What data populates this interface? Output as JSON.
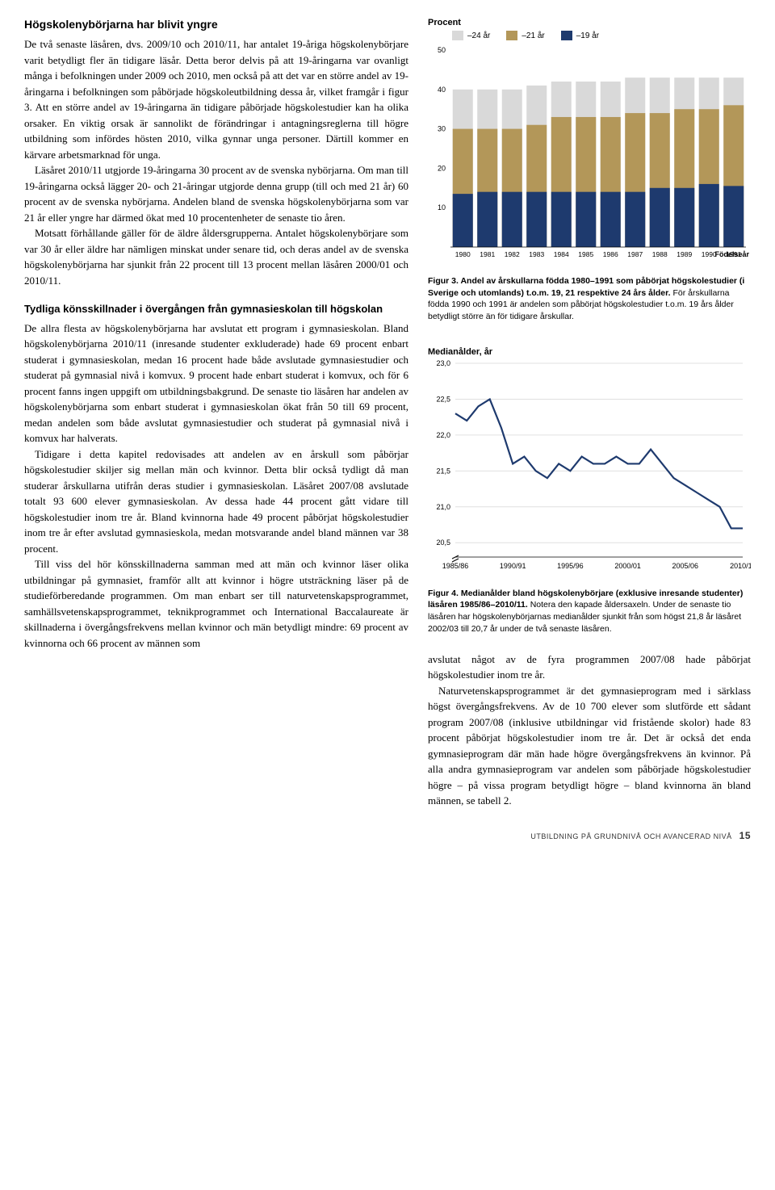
{
  "leftCol": {
    "heading1": "Högskolenybörjarna har blivit yngre",
    "para1": "De två senaste läsåren, dvs. 2009/10 och 2010/11, har antalet 19-åriga högskolenybörjare varit betydligt fler än tidigare läsår. Detta beror delvis på att 19-åringarna var ovanligt många i befolkningen under 2009 och 2010, men också på att det var en större andel av 19-åringarna i befolkningen som påbörjade högskoleutbildning dessa år, vilket framgår i figur 3. Att en större andel av 19-åringarna än tidigare påbörjade högskolestudier kan ha olika orsaker. En viktig orsak är sannolikt de förändringar i antagningsreglerna till högre utbildning som infördes hösten 2010, vilka gynnar unga personer. Därtill kommer en kärvare arbetsmarknad för unga.",
    "para2": "Läsåret 2010/11 utgjorde 19-åringarna 30 procent av de svenska nybörjarna. Om man till 19-åringarna också lägger 20- och 21-åringar utgjorde denna grupp (till och med 21 år) 60 procent av de svenska nybörjarna. Andelen bland de svenska högskolenybörjarna som var 21 år eller yngre har därmed ökat med 10 procentenheter de senaste tio åren.",
    "para3": "Motsatt förhållande gäller för de äldre åldersgrupperna. Antalet högskolenybörjare som var 30 år eller äldre har nämligen minskat under senare tid, och deras andel av de svenska högskolenybörjarna har sjunkit från 22 procent till 13 procent mellan läsåren 2000/01 och 2010/11.",
    "heading2": "Tydliga könsskillnader i övergången från gymnasieskolan till högskolan",
    "para4": "De allra flesta av högskolenybörjarna har avslutat ett program i gymnasieskolan. Bland högskolenybörjarna 2010/11 (inresande studenter exkluderade) hade 69 procent enbart studerat i gymnasieskolan, medan 16 procent hade både avslutade gymnasiestudier och studerat på gymnasial nivå i komvux. 9 procent hade enbart studerat i komvux, och för 6 procent fanns ingen uppgift om utbildningsbakgrund. De senaste tio läsåren har andelen av högskolenybörjarna som enbart studerat i gymnasieskolan ökat från 50 till 69 procent, medan andelen som både avslutat gymnasiestudier och studerat på gymnasial nivå i komvux har halverats.",
    "para5": "Tidigare i detta kapitel redovisades att andelen av en årskull som påbörjar högskolestudier skiljer sig mellan män och kvinnor. Detta blir också tydligt då man studerar årskullarna utifrån deras studier i gymnasieskolan. Läsåret 2007/08 avslutade totalt 93 600 elever gymnasieskolan. Av dessa hade 44 procent gått vidare till högskolestudier inom tre år. Bland kvinnorna hade 49 procent påbörjat högskolestudier inom tre år efter avslutad gymnasieskola, medan motsvarande andel bland männen var 38 procent.",
    "para6": "Till viss del hör könsskillnaderna samman med att män och kvinnor läser olika utbildningar på gymnasiet, framför allt att kvinnor i högre utsträckning läser på de studieförberedande programmen. Om man enbart ser till naturvetenskapsprogrammet, samhällsvetenskapsprogrammet, teknikprogrammet och International Baccalaureate är skillnaderna i övergångsfrekvens mellan kvinnor och män betydligt mindre: 69 procent av kvinnorna och 66 procent av männen som"
  },
  "rightCol": {
    "para7": "avslutat något av de fyra programmen 2007/08 hade påbörjat högskolestudier inom tre år.",
    "para8": "Naturvetenskapsprogrammet är det gymnasieprogram med i särklass högst övergångsfrekvens. Av de 10 700 elever som slutförde ett sådant program 2007/08 (inklusive utbildningar vid fristående skolor) hade 83 procent påbörjat högskolestudier inom tre år. Det är också det enda gymnasieprogram där män hade högre övergångsfrekvens än kvinnor. På alla andra gymnasieprogram var andelen som påbörjade högskolestudier högre – på vissa program betydligt högre – bland kvinnorna än bland männen, se tabell 2."
  },
  "barChart": {
    "title": "Procent",
    "legend": [
      {
        "label": "–24 år",
        "color": "#d9d9d9"
      },
      {
        "label": "–21 år",
        "color": "#b39759"
      },
      {
        "label": "–19 år",
        "color": "#1e3a6e"
      }
    ],
    "yTicks": [
      10,
      20,
      30,
      40,
      50
    ],
    "yMax": 50,
    "years": [
      "1980",
      "1981",
      "1982",
      "1983",
      "1984",
      "1985",
      "1986",
      "1987",
      "1988",
      "1989",
      "1990",
      "1991"
    ],
    "series24": [
      40,
      40,
      40,
      41,
      42,
      42,
      42,
      43,
      43,
      43,
      43,
      43
    ],
    "series21": [
      30,
      30,
      30,
      31,
      33,
      33,
      33,
      34,
      34,
      35,
      35,
      36
    ],
    "series19": [
      13.5,
      14,
      14,
      14,
      14,
      14,
      14,
      14,
      15,
      15,
      16,
      15.5
    ],
    "xLabelRight": "Födelseår",
    "colors": {
      "bg": "#ffffff",
      "grid": "#ffffff"
    },
    "caption_strong": "Figur 3. Andel av årskullarna födda 1980–1991 som påbörjat högskolestudier (i Sverige och utomlands) t.o.m. 19, 21 respektive 24 års ålder.",
    "caption_rest": " För årskullarna födda 1990 och 1991 är andelen som påbörjat högskolestudier t.o.m. 19 års ålder betydligt större än för tidigare årskullar."
  },
  "lineChart": {
    "title": "Medianålder, år",
    "yTicks": [
      20.5,
      21.0,
      21.5,
      22.0,
      22.5,
      23.0
    ],
    "yMin": 20.3,
    "yMax": 23.0,
    "xTicks": [
      "1985/86",
      "1990/91",
      "1995/96",
      "2000/01",
      "2005/06",
      "2010/11"
    ],
    "points": [
      [
        0,
        22.3
      ],
      [
        1,
        22.2
      ],
      [
        2,
        22.4
      ],
      [
        3,
        22.5
      ],
      [
        4,
        22.1
      ],
      [
        5,
        21.6
      ],
      [
        6,
        21.7
      ],
      [
        7,
        21.5
      ],
      [
        8,
        21.4
      ],
      [
        9,
        21.6
      ],
      [
        10,
        21.5
      ],
      [
        11,
        21.7
      ],
      [
        12,
        21.6
      ],
      [
        13,
        21.6
      ],
      [
        14,
        21.7
      ],
      [
        15,
        21.6
      ],
      [
        16,
        21.6
      ],
      [
        17,
        21.8
      ],
      [
        18,
        21.6
      ],
      [
        19,
        21.4
      ],
      [
        20,
        21.3
      ],
      [
        21,
        21.2
      ],
      [
        22,
        21.1
      ],
      [
        23,
        21.0
      ],
      [
        24,
        20.7
      ],
      [
        25,
        20.7
      ]
    ],
    "line_color": "#1e3a6e",
    "grid_color": "#e0e0e0",
    "caption_strong": "Figur 4. Medianålder bland högskolenybörjare (exklusive inresande studenter) läsåren 1985/86–2010/11.",
    "caption_rest": " Notera den kapade åldersaxeln. Under de senaste tio läsåren har högskolenybörjarnas medianålder sjunkit från som högst 21,8 år läsåret 2002/03 till 20,7 år under de två senaste läsåren."
  },
  "footer": {
    "text": "UTBILDNING PÅ GRUNDNIVÅ OCH AVANCERAD NIVÅ",
    "page": "15"
  }
}
